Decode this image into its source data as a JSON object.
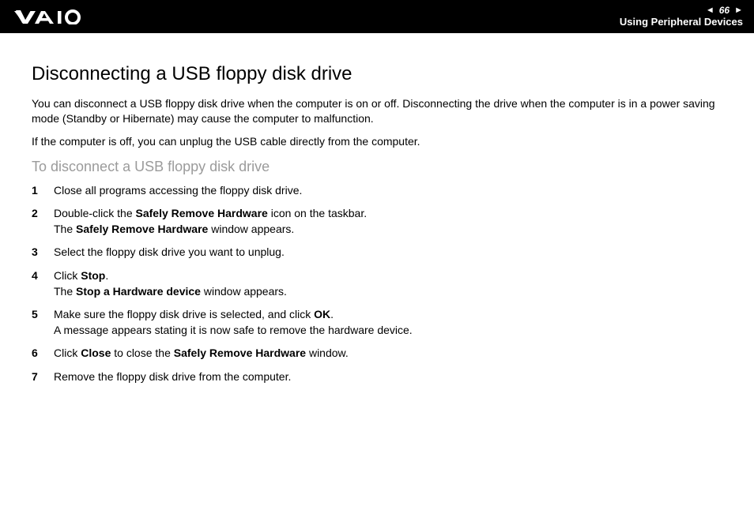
{
  "header": {
    "page_number": "66",
    "section": "Using Peripheral Devices",
    "colors": {
      "bg": "#000000",
      "fg": "#ffffff"
    }
  },
  "title": "Disconnecting a USB floppy disk drive",
  "paragraphs": [
    "You can disconnect a USB floppy disk drive when the computer is on or off. Disconnecting the drive when the computer is in a power saving mode (Standby or Hibernate) may cause the computer to malfunction.",
    "If the computer is off, you can unplug the USB cable directly from the computer."
  ],
  "subheading": "To disconnect a USB floppy disk drive",
  "subheading_color": "#9b9b9b",
  "steps": [
    {
      "num": "1",
      "lines": [
        [
          {
            "t": "Close all programs accessing the floppy disk drive."
          }
        ]
      ]
    },
    {
      "num": "2",
      "lines": [
        [
          {
            "t": "Double-click the "
          },
          {
            "t": "Safely Remove Hardware",
            "b": true
          },
          {
            "t": " icon on the taskbar."
          }
        ],
        [
          {
            "t": "The "
          },
          {
            "t": "Safely Remove Hardware",
            "b": true
          },
          {
            "t": " window appears."
          }
        ]
      ]
    },
    {
      "num": "3",
      "lines": [
        [
          {
            "t": "Select the floppy disk drive you want to unplug."
          }
        ]
      ]
    },
    {
      "num": "4",
      "lines": [
        [
          {
            "t": "Click "
          },
          {
            "t": "Stop",
            "b": true
          },
          {
            "t": "."
          }
        ],
        [
          {
            "t": "The "
          },
          {
            "t": "Stop a Hardware device",
            "b": true
          },
          {
            "t": " window appears."
          }
        ]
      ]
    },
    {
      "num": "5",
      "lines": [
        [
          {
            "t": "Make sure the floppy disk drive is selected, and click "
          },
          {
            "t": "OK",
            "b": true
          },
          {
            "t": "."
          }
        ],
        [
          {
            "t": "A message appears stating it is now safe to remove the hardware device."
          }
        ]
      ]
    },
    {
      "num": "6",
      "lines": [
        [
          {
            "t": "Click "
          },
          {
            "t": "Close",
            "b": true
          },
          {
            "t": " to close the "
          },
          {
            "t": "Safely Remove Hardware",
            "b": true
          },
          {
            "t": " window."
          }
        ]
      ]
    },
    {
      "num": "7",
      "lines": [
        [
          {
            "t": "Remove the floppy disk drive from the computer."
          }
        ]
      ]
    }
  ]
}
